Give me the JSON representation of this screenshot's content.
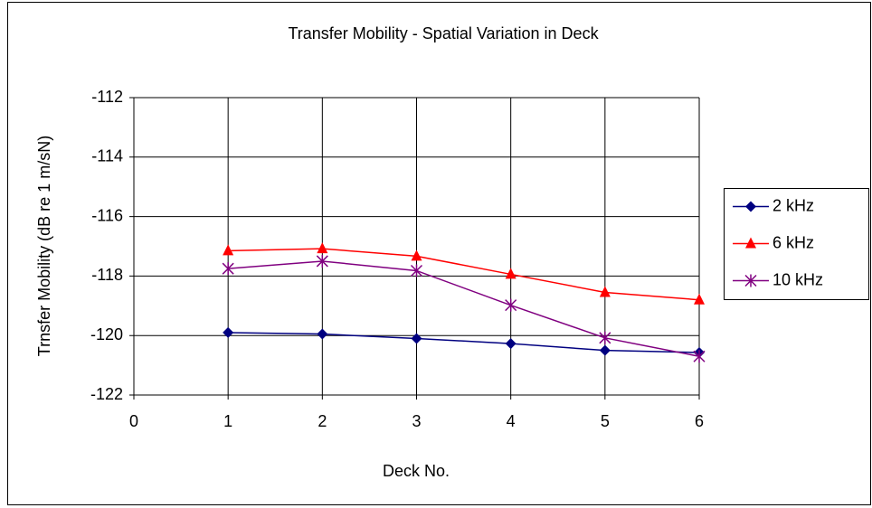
{
  "chart_data": {
    "type": "line",
    "title": "Transfer Mobility - Spatial Variation in Deck",
    "x_label": "Deck No.",
    "y_label": "Trnsfer Mobility (dB re 1 m/sN)",
    "x": [
      1,
      2,
      3,
      4,
      5,
      6
    ],
    "series": [
      {
        "name": "2 kHz",
        "color": "#000080",
        "marker": "diamond",
        "values": [
          -119.9,
          -119.95,
          -120.1,
          -120.27,
          -120.5,
          -120.57
        ]
      },
      {
        "name": "6 kHz",
        "color": "#ff0000",
        "marker": "triangle",
        "values": [
          -117.15,
          -117.08,
          -117.33,
          -117.94,
          -118.55,
          -118.8
        ]
      },
      {
        "name": "10 kHz",
        "color": "#800080",
        "marker": "asterisk",
        "values": [
          -117.75,
          -117.5,
          -117.82,
          -118.98,
          -120.08,
          -120.7
        ]
      }
    ],
    "xlim": [
      0,
      6
    ],
    "xticks": [
      0,
      1,
      2,
      3,
      4,
      5,
      6
    ],
    "ylim": [
      -122,
      -112
    ],
    "yticks": [
      -122,
      -120,
      -118,
      -116,
      -114,
      -112
    ],
    "grid": true,
    "legend": "right"
  }
}
